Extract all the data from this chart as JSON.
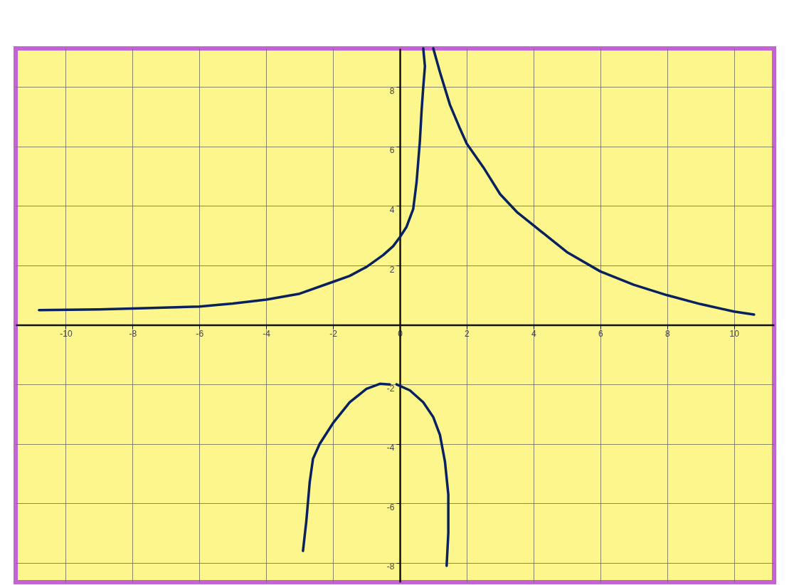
{
  "chart_data": {
    "type": "line",
    "xlim": [
      -11.5,
      11.2
    ],
    "ylim": [
      -8.65,
      9.3
    ],
    "xticks": [
      -10,
      -8,
      -6,
      -4,
      -2,
      0,
      2,
      4,
      6,
      8,
      10
    ],
    "yticks": [
      -8,
      -6,
      -4,
      -2,
      2,
      4,
      6,
      8
    ],
    "grid": true,
    "marker": "none",
    "line_style": "solid",
    "series": [
      {
        "color": "#0a2160",
        "x": [
          -10.8,
          -9,
          -8,
          -6,
          -5,
          -4,
          -3,
          -2,
          -1.5,
          -1,
          -0.5,
          -0.2,
          0,
          0.2,
          0.4,
          0.5,
          0.55,
          0.6,
          0.65,
          0.7,
          0.75,
          0.7
        ],
        "values": [
          0.5,
          0.52,
          0.55,
          0.62,
          0.72,
          0.85,
          1.05,
          1.45,
          1.65,
          1.95,
          2.35,
          2.65,
          2.95,
          3.3,
          3.9,
          4.8,
          5.5,
          6.2,
          7.2,
          8,
          8.7,
          9.3
        ]
      },
      {
        "color": "#0a2160",
        "x": [
          1.0,
          1.2,
          1.5,
          1.8,
          2,
          2.5,
          3,
          3.5,
          4,
          4.5,
          5,
          6,
          7,
          8,
          9,
          10,
          10.6
        ],
        "values": [
          9.3,
          8.5,
          7.4,
          6.6,
          6.1,
          5.3,
          4.4,
          3.8,
          3.35,
          2.9,
          2.45,
          1.8,
          1.35,
          1.0,
          0.7,
          0.45,
          0.35
        ]
      },
      {
        "color": "#0a2160",
        "x": [
          -2.9,
          -2.8,
          -2.7,
          -2.6,
          -2.4,
          -2,
          -1.5,
          -1,
          -0.6,
          -0.3
        ],
        "values": [
          -7.6,
          -6.6,
          -5.3,
          -4.5,
          -4.0,
          -3.3,
          -2.6,
          -2.15,
          -1.98,
          -2.0
        ]
      },
      {
        "color": "#0a2160",
        "x": [
          -0.1,
          0.3,
          0.7,
          1.0,
          1.2,
          1.35,
          1.45,
          1.45,
          1.4
        ],
        "values": [
          -2.0,
          -2.2,
          -2.6,
          -3.1,
          -3.7,
          -4.6,
          -5.7,
          -7.0,
          -8.1
        ]
      }
    ]
  }
}
